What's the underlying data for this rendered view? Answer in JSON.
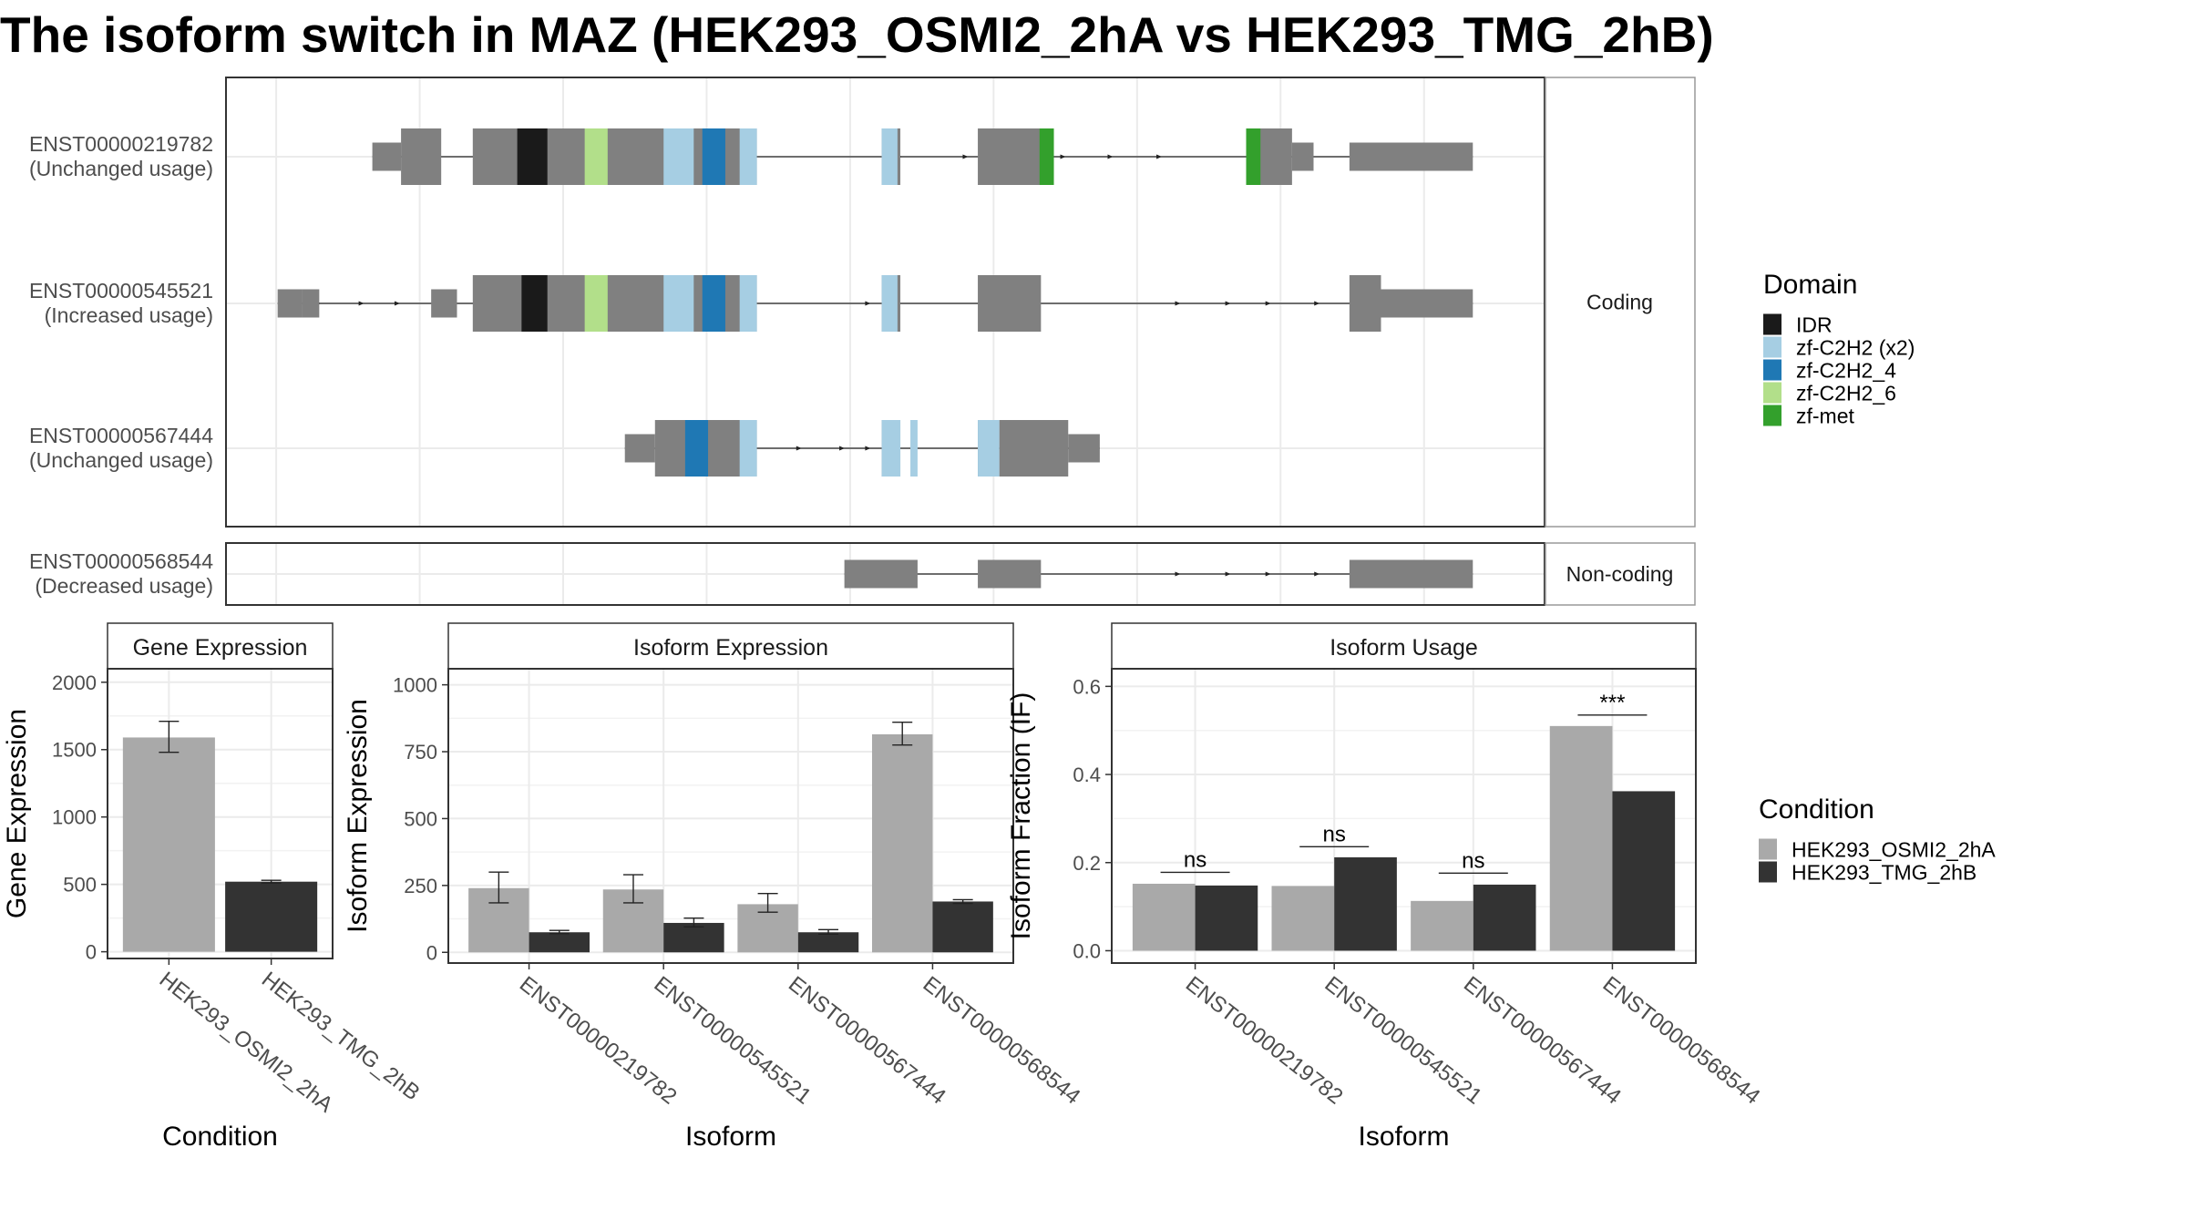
{
  "title": "The isoform switch in MAZ (HEK293_OSMI2_2hA vs HEK293_TMG_2hB)",
  "colors": {
    "exon": "#808080",
    "panel_border": "#333333",
    "strip_border": "#999999",
    "grid": "#ebebeb",
    "condition_a": "#a9a9a9",
    "condition_b": "#333333"
  },
  "structure": {
    "groups": [
      {
        "label": "Coding",
        "isoforms": [
          {
            "id": "ENST00000219782",
            "status": "(Unchanged usage)",
            "exons": [
              {
                "start": 12,
                "end": 32,
                "type": "utr"
              },
              {
                "start": 32,
                "end": 60,
                "type": "cds"
              },
              {
                "start": 82,
                "end": 280,
                "type": "cds"
              },
              {
                "start": 367,
                "end": 380,
                "type": "cds"
              },
              {
                "start": 434,
                "end": 487,
                "type": "cds"
              },
              {
                "start": 621,
                "end": 653,
                "type": "cds"
              },
              {
                "start": 653,
                "end": 668,
                "type": "utr"
              },
              {
                "start": 693,
                "end": 779,
                "type": "utr"
              }
            ],
            "domains": [
              {
                "start": 113,
                "end": 134,
                "name": "IDR"
              },
              {
                "start": 160,
                "end": 176,
                "name": "zf-C2H2_6"
              },
              {
                "start": 215,
                "end": 236,
                "name": "zf-C2H2 (x2)"
              },
              {
                "start": 242,
                "end": 258,
                "name": "zf-C2H2_4"
              },
              {
                "start": 268,
                "end": 280,
                "name": "zf-C2H2 (x2)"
              },
              {
                "start": 367,
                "end": 378,
                "name": "zf-C2H2 (x2)"
              },
              {
                "start": 477,
                "end": 487,
                "name": "zf-met"
              },
              {
                "start": 621,
                "end": 631,
                "name": "zf-met"
              }
            ],
            "arrows": [
              186,
              200,
              226,
              380,
              426,
              463,
              494,
              527,
              561,
              641
            ]
          },
          {
            "id": "ENST00000545521",
            "status": "(Increased usage)",
            "exons": [
              {
                "start": -54,
                "end": -37,
                "type": "utr"
              },
              {
                "start": -37,
                "end": -25,
                "type": "utr"
              },
              {
                "start": 53,
                "end": 71,
                "type": "utr"
              },
              {
                "start": 82,
                "end": 280,
                "type": "cds"
              },
              {
                "start": 367,
                "end": 380,
                "type": "cds"
              },
              {
                "start": 434,
                "end": 478,
                "type": "cds"
              },
              {
                "start": 693,
                "end": 715,
                "type": "cds"
              },
              {
                "start": 715,
                "end": 779,
                "type": "utr"
              }
            ],
            "domains": [
              {
                "start": 116,
                "end": 134,
                "name": "IDR"
              },
              {
                "start": 160,
                "end": 176,
                "name": "zf-C2H2_6"
              },
              {
                "start": 215,
                "end": 236,
                "name": "zf-C2H2 (x2)"
              },
              {
                "start": 242,
                "end": 258,
                "name": "zf-C2H2_4"
              },
              {
                "start": 268,
                "end": 280,
                "name": "zf-C2H2 (x2)"
              },
              {
                "start": 367,
                "end": 378,
                "name": "zf-C2H2 (x2)"
              }
            ],
            "arrows": [
              -25,
              5,
              30,
              56,
              66,
              358,
              574,
              609,
              637,
              671
            ]
          },
          {
            "id": "ENST00000567444",
            "status": "(Unchanged usage)",
            "exons": [
              {
                "start": 188,
                "end": 209,
                "type": "utr"
              },
              {
                "start": 209,
                "end": 280,
                "type": "cds"
              },
              {
                "start": 367,
                "end": 380,
                "type": "cds"
              },
              {
                "start": 434,
                "end": 449,
                "type": "cds"
              },
              {
                "start": 449,
                "end": 497,
                "type": "cds"
              },
              {
                "start": 497,
                "end": 519,
                "type": "utr"
              }
            ],
            "domains": [
              {
                "start": 230,
                "end": 246,
                "name": "zf-C2H2_4"
              },
              {
                "start": 268,
                "end": 280,
                "name": "zf-C2H2 (x2)"
              },
              {
                "start": 367,
                "end": 380,
                "name": "zf-C2H2 (x2)"
              },
              {
                "start": 387,
                "end": 392,
                "name": "zf-C2H2 (x2)"
              },
              {
                "start": 434,
                "end": 449,
                "name": "zf-C2H2 (x2)"
              }
            ],
            "arrows": [
              310,
              340,
              358
            ]
          }
        ]
      },
      {
        "label": "Non-coding",
        "isoforms": [
          {
            "id": "ENST00000568544",
            "status": "(Decreased usage)",
            "exons": [
              {
                "start": 341,
                "end": 392,
                "type": "utr"
              },
              {
                "start": 434,
                "end": 478,
                "type": "utr"
              },
              {
                "start": 693,
                "end": 779,
                "type": "utr"
              }
            ],
            "domains": [],
            "arrows": [
              574,
              609,
              637,
              671
            ]
          }
        ]
      }
    ],
    "xlim": [
      -90,
      829
    ],
    "grid_x": [
      -55,
      45,
      145,
      245,
      345,
      445,
      545,
      645,
      745
    ]
  },
  "legend_domain": {
    "title": "Domain",
    "items": [
      {
        "name": "IDR",
        "color": "#1a1a1a"
      },
      {
        "name": "zf-C2H2 (x2)",
        "color": "#a6cee3"
      },
      {
        "name": "zf-C2H2_4",
        "color": "#1f78b4"
      },
      {
        "name": "zf-C2H2_6",
        "color": "#b2df8a"
      },
      {
        "name": "zf-met",
        "color": "#33a02c"
      }
    ]
  },
  "legend_condition": {
    "title": "Condition",
    "items": [
      {
        "name": "HEK293_OSMI2_2hA",
        "color": "#a9a9a9"
      },
      {
        "name": "HEK293_TMG_2hB",
        "color": "#333333"
      }
    ]
  },
  "chart_data": [
    {
      "type": "bar",
      "title": "Gene Expression",
      "xlabel": "Condition",
      "ylabel": "Gene Expression",
      "categories": [
        "HEK293_OSMI2_2hA",
        "HEK293_TMG_2hB"
      ],
      "values": [
        1590,
        520
      ],
      "error_low": [
        1480,
        510
      ],
      "error_high": [
        1710,
        530
      ],
      "colors": [
        "#a9a9a9",
        "#333333"
      ],
      "ylim": [
        -50,
        2100
      ],
      "yticks": [
        0,
        500,
        1000,
        1500,
        2000
      ],
      "ytick_labels": [
        "0",
        "500",
        "1000",
        "1500",
        "2000"
      ],
      "grid": true
    },
    {
      "type": "bar",
      "title": "Isoform Expression",
      "xlabel": "Isoform",
      "ylabel": "Isoform Expression",
      "categories": [
        "ENST00000219782",
        "ENST00000545521",
        "ENST00000567444",
        "ENST00000568544"
      ],
      "series": [
        {
          "name": "HEK293_OSMI2_2hA",
          "values": [
            240,
            235,
            180,
            815
          ],
          "error_low": [
            185,
            185,
            150,
            775
          ],
          "error_high": [
            300,
            290,
            220,
            860
          ]
        },
        {
          "name": "HEK293_TMG_2hB",
          "values": [
            75,
            110,
            75,
            190
          ],
          "error_low": [
            70,
            95,
            68,
            183
          ],
          "error_high": [
            82,
            128,
            85,
            197
          ]
        }
      ],
      "ylim": [
        -40,
        1060
      ],
      "yticks": [
        0,
        250,
        500,
        750,
        1000
      ],
      "ytick_labels": [
        "0",
        "250",
        "500",
        "750",
        "1000"
      ],
      "grid": true
    },
    {
      "type": "bar",
      "title": "Isoform Usage",
      "xlabel": "Isoform",
      "ylabel": "Isoform Fraction (IF)",
      "categories": [
        "ENST00000219782",
        "ENST00000545521",
        "ENST00000567444",
        "ENST00000568544"
      ],
      "series": [
        {
          "name": "HEK293_OSMI2_2hA",
          "values": [
            0.152,
            0.147,
            0.113,
            0.51
          ]
        },
        {
          "name": "HEK293_TMG_2hB",
          "values": [
            0.148,
            0.212,
            0.15,
            0.362
          ]
        }
      ],
      "significance": [
        {
          "label": "ns",
          "y": 0.178
        },
        {
          "label": "ns",
          "y": 0.236
        },
        {
          "label": "ns",
          "y": 0.176
        },
        {
          "label": "***",
          "y": 0.535
        }
      ],
      "ylim": [
        -0.028,
        0.64
      ],
      "yticks": [
        0.0,
        0.2,
        0.4,
        0.6
      ],
      "ytick_labels": [
        "0.0",
        "0.2",
        "0.4",
        "0.6"
      ],
      "grid": true
    }
  ]
}
